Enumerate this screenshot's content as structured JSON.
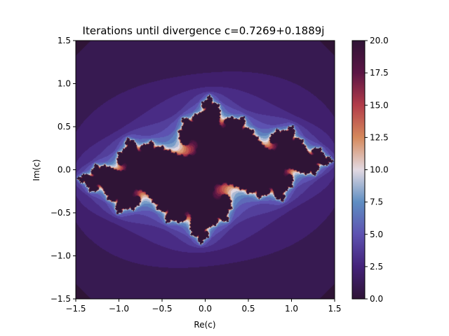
{
  "chart_data": {
    "type": "heatmap",
    "title": "Iterations until divergence c=0.7269+0.1889j",
    "xlabel": "Re(c)",
    "ylabel": "Im(c)",
    "xlim": [
      -1.5,
      1.5
    ],
    "ylim": [
      -1.5,
      1.5
    ],
    "c": {
      "re": 0.7269,
      "im": 0.1889
    },
    "max_iterations": 20,
    "x_ticks": [
      -1.5,
      -1.0,
      -0.5,
      0.0,
      0.5,
      1.0,
      1.5
    ],
    "x_tick_labels": [
      "−1.5",
      "−1.0",
      "−0.5",
      "0.0",
      "0.5",
      "1.0",
      "1.5"
    ],
    "y_ticks": [
      -1.5,
      -1.0,
      -0.5,
      0.0,
      0.5,
      1.0,
      1.5
    ],
    "y_tick_labels": [
      "−1.5",
      "−1.0",
      "−0.5",
      "0.0",
      "0.5",
      "1.0",
      "1.5"
    ],
    "colorbar": {
      "colormap": "twilight_shifted",
      "range": [
        0.0,
        20.0
      ],
      "ticks": [
        0.0,
        2.5,
        5.0,
        7.5,
        10.0,
        12.5,
        15.0,
        17.5,
        20.0
      ],
      "tick_labels": [
        "0.0",
        "2.5",
        "5.0",
        "7.5",
        "10.0",
        "12.5",
        "15.0",
        "17.5",
        "20.0"
      ],
      "color_stops": [
        "#2f1436",
        "#44227a",
        "#5d52b1",
        "#5f8ec2",
        "#e2d9e2",
        "#d5895c",
        "#b23c49",
        "#5b1545",
        "#2f1436"
      ]
    },
    "grid": false
  }
}
